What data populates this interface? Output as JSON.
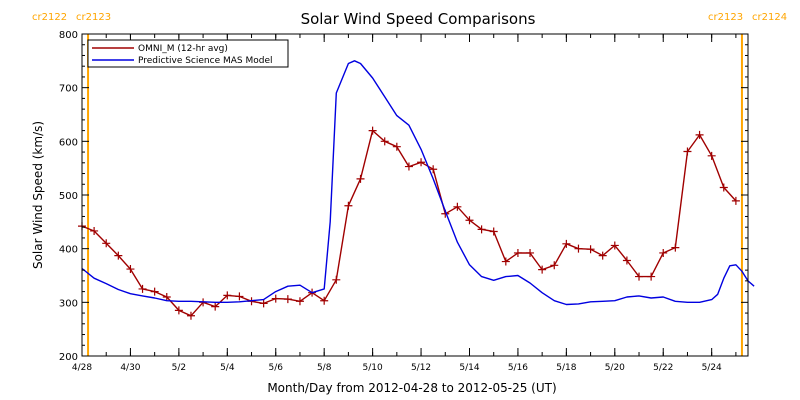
{
  "chart_data": {
    "type": "line",
    "title": "Solar Wind Speed Comparisons",
    "xlabel": "Month/Day from 2012-04-28 to 2012-05-25 (UT)",
    "ylabel": "Solar Wind Speed (km/s)",
    "xlim": [
      "2012-04-28",
      "2012-05-25T12:00"
    ],
    "ylim": [
      200,
      800
    ],
    "x_ticks": [
      "4/28",
      "4/30",
      "5/2",
      "5/4",
      "5/6",
      "5/8",
      "5/10",
      "5/12",
      "5/14",
      "5/16",
      "5/18",
      "5/20",
      "5/22",
      "5/24"
    ],
    "y_ticks": [
      200,
      300,
      400,
      500,
      600,
      700,
      800
    ],
    "legend_position": "top-left",
    "grid": false,
    "carrington_markers": [
      {
        "date": "2012-04-28T06:00",
        "left_label": "cr2122",
        "right_label": "cr2123",
        "color": "#ffa500",
        "position": "left"
      },
      {
        "date": "2012-05-25T06:00",
        "left_label": "cr2123",
        "right_label": "cr2124",
        "color": "#ffa500",
        "position": "right"
      }
    ],
    "series": [
      {
        "name": "OMNI_M (12-hr avg)",
        "color": "#a00000",
        "marker": "plus",
        "points": [
          [
            "2012-04-28T00:00",
            442
          ],
          [
            "2012-04-28T12:00",
            433
          ],
          [
            "2012-04-29T00:00",
            410
          ],
          [
            "2012-04-29T12:00",
            387
          ],
          [
            "2012-04-30T00:00",
            362
          ],
          [
            "2012-04-30T12:00",
            325
          ],
          [
            "2012-05-01T00:00",
            320
          ],
          [
            "2012-05-01T12:00",
            310
          ],
          [
            "2012-05-02T00:00",
            285
          ],
          [
            "2012-05-02T12:00",
            275
          ],
          [
            "2012-05-03T00:00",
            300
          ],
          [
            "2012-05-03T12:00",
            292
          ],
          [
            "2012-05-04T00:00",
            313
          ],
          [
            "2012-05-04T12:00",
            311
          ],
          [
            "2012-05-05T00:00",
            302
          ],
          [
            "2012-05-05T12:00",
            298
          ],
          [
            "2012-05-06T00:00",
            307
          ],
          [
            "2012-05-06T12:00",
            306
          ],
          [
            "2012-05-07T00:00",
            302
          ],
          [
            "2012-05-07T12:00",
            318
          ],
          [
            "2012-05-08T00:00",
            303
          ],
          [
            "2012-05-08T12:00",
            342
          ],
          [
            "2012-05-09T00:00",
            480
          ],
          [
            "2012-05-09T12:00",
            530
          ],
          [
            "2012-05-10T00:00",
            620
          ],
          [
            "2012-05-10T12:00",
            600
          ],
          [
            "2012-05-11T00:00",
            590
          ],
          [
            "2012-05-11T12:00",
            553
          ],
          [
            "2012-05-12T00:00",
            561
          ],
          [
            "2012-05-12T12:00",
            548
          ],
          [
            "2012-05-13T00:00",
            465
          ],
          [
            "2012-05-13T12:00",
            478
          ],
          [
            "2012-05-14T00:00",
            453
          ],
          [
            "2012-05-14T12:00",
            436
          ],
          [
            "2012-05-15T00:00",
            432
          ],
          [
            "2012-05-15T12:00",
            376
          ],
          [
            "2012-05-16T00:00",
            392
          ],
          [
            "2012-05-16T12:00",
            392
          ],
          [
            "2012-05-17T00:00",
            361
          ],
          [
            "2012-05-17T12:00",
            369
          ],
          [
            "2012-05-18T00:00",
            409
          ],
          [
            "2012-05-18T12:00",
            400
          ],
          [
            "2012-05-19T00:00",
            399
          ],
          [
            "2012-05-19T12:00",
            387
          ],
          [
            "2012-05-20T00:00",
            406
          ],
          [
            "2012-05-20T12:00",
            378
          ],
          [
            "2012-05-21T00:00",
            348
          ],
          [
            "2012-05-21T12:00",
            348
          ],
          [
            "2012-05-22T00:00",
            392
          ],
          [
            "2012-05-22T12:00",
            402
          ],
          [
            "2012-05-23T00:00",
            581
          ],
          [
            "2012-05-23T12:00",
            612
          ],
          [
            "2012-05-24T00:00",
            573
          ],
          [
            "2012-05-24T12:00",
            514
          ],
          [
            "2012-05-25T00:00",
            489
          ]
        ]
      },
      {
        "name": "Predictive Science MAS Model",
        "color": "#0000e0",
        "marker": "none",
        "points": [
          [
            "2012-04-28T00:00",
            363
          ],
          [
            "2012-04-28T12:00",
            345
          ],
          [
            "2012-04-29T00:00",
            335
          ],
          [
            "2012-04-29T12:00",
            324
          ],
          [
            "2012-04-30T00:00",
            316
          ],
          [
            "2012-04-30T12:00",
            312
          ],
          [
            "2012-05-01T00:00",
            308
          ],
          [
            "2012-05-01T12:00",
            303
          ],
          [
            "2012-05-02T00:00",
            302
          ],
          [
            "2012-05-02T12:00",
            302
          ],
          [
            "2012-05-03T00:00",
            301
          ],
          [
            "2012-05-03T12:00",
            300
          ],
          [
            "2012-05-04T00:00",
            300
          ],
          [
            "2012-05-04T12:00",
            301
          ],
          [
            "2012-05-05T00:00",
            303
          ],
          [
            "2012-05-05T12:00",
            305
          ],
          [
            "2012-05-06T00:00",
            320
          ],
          [
            "2012-05-06T12:00",
            330
          ],
          [
            "2012-05-07T00:00",
            332
          ],
          [
            "2012-05-07T12:00",
            318
          ],
          [
            "2012-05-08T00:00",
            325
          ],
          [
            "2012-05-08T06:00",
            450
          ],
          [
            "2012-05-08T12:00",
            690
          ],
          [
            "2012-05-09T00:00",
            745
          ],
          [
            "2012-05-09T06:00",
            750
          ],
          [
            "2012-05-09T12:00",
            745
          ],
          [
            "2012-05-10T00:00",
            718
          ],
          [
            "2012-05-10T12:00",
            683
          ],
          [
            "2012-05-11T00:00",
            648
          ],
          [
            "2012-05-11T12:00",
            630
          ],
          [
            "2012-05-12T00:00",
            585
          ],
          [
            "2012-05-12T12:00",
            530
          ],
          [
            "2012-05-13T00:00",
            470
          ],
          [
            "2012-05-13T12:00",
            412
          ],
          [
            "2012-05-14T00:00",
            370
          ],
          [
            "2012-05-14T12:00",
            348
          ],
          [
            "2012-05-15T00:00",
            341
          ],
          [
            "2012-05-15T12:00",
            348
          ],
          [
            "2012-05-16T00:00",
            350
          ],
          [
            "2012-05-16T12:00",
            336
          ],
          [
            "2012-05-17T00:00",
            318
          ],
          [
            "2012-05-17T12:00",
            303
          ],
          [
            "2012-05-18T00:00",
            296
          ],
          [
            "2012-05-18T12:00",
            297
          ],
          [
            "2012-05-19T00:00",
            301
          ],
          [
            "2012-05-19T12:00",
            302
          ],
          [
            "2012-05-20T00:00",
            303
          ],
          [
            "2012-05-20T12:00",
            310
          ],
          [
            "2012-05-21T00:00",
            312
          ],
          [
            "2012-05-21T12:00",
            308
          ],
          [
            "2012-05-22T00:00",
            310
          ],
          [
            "2012-05-22T12:00",
            302
          ],
          [
            "2012-05-23T00:00",
            300
          ],
          [
            "2012-05-23T12:00",
            300
          ],
          [
            "2012-05-24T00:00",
            305
          ],
          [
            "2012-05-24T06:00",
            315
          ],
          [
            "2012-05-24T12:00",
            345
          ],
          [
            "2012-05-24T18:00",
            368
          ],
          [
            "2012-05-25T00:00",
            370
          ],
          [
            "2012-05-25T06:00",
            358
          ],
          [
            "2012-05-25T12:00",
            340
          ],
          [
            "2012-05-25T18:00",
            330
          ]
        ]
      }
    ]
  }
}
